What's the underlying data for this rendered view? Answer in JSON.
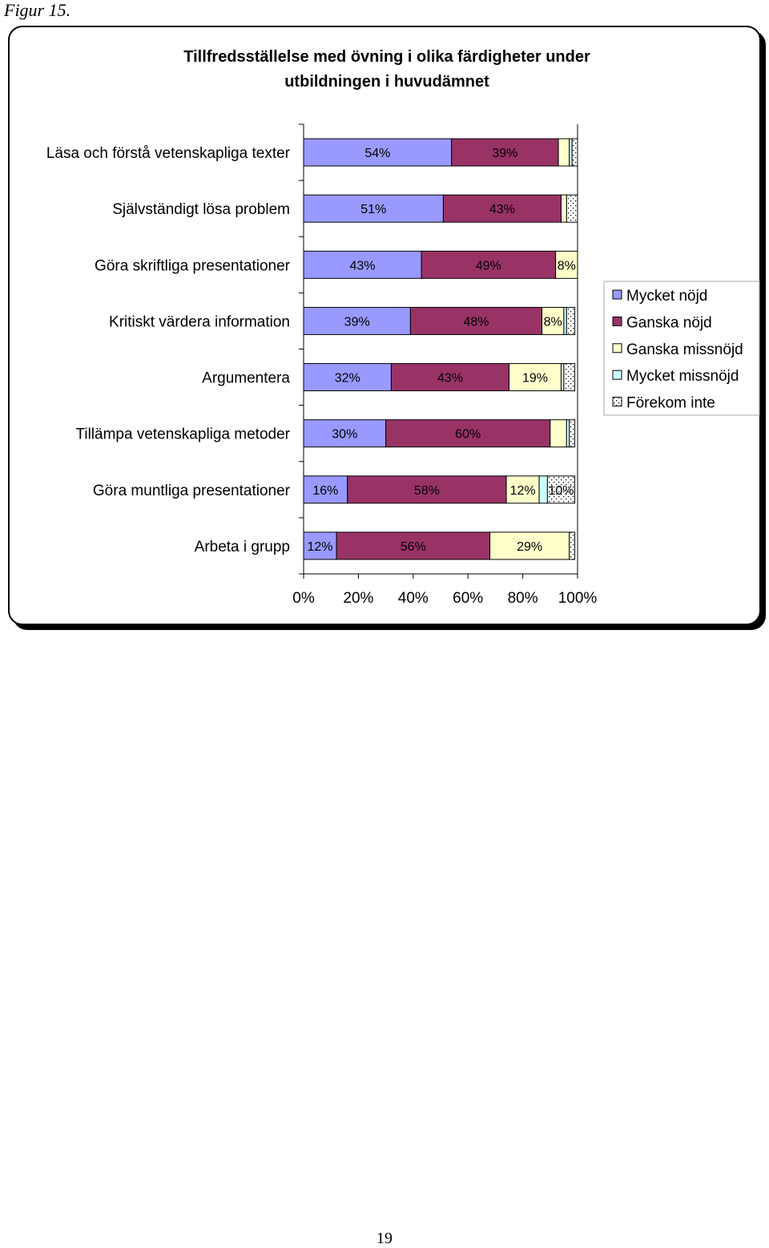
{
  "figure_caption": "Figur 15.",
  "page_number": "19",
  "chart_data": {
    "type": "bar",
    "orientation": "horizontal",
    "stacked": "percent",
    "title": "Tillfredsställelse med övning i olika färdigheter under utbildningen i huvudämnet",
    "title_lines": [
      "Tillfredsställelse med övning i olika färdigheter under",
      "utbildningen i huvudämnet"
    ],
    "categories": [
      "Läsa och förstå vetenskapliga texter",
      "Självständigt lösa problem",
      "Göra skriftliga presentationer",
      "Kritiskt värdera information",
      "Argumentera",
      "Tillämpa vetenskapliga metoder",
      "Göra muntliga presentationer",
      "Arbeta i grupp"
    ],
    "series": [
      {
        "name": "Mycket nöjd",
        "color": "#9999ff",
        "pattern": "solid",
        "values": [
          54,
          51,
          43,
          39,
          32,
          30,
          16,
          12
        ]
      },
      {
        "name": "Ganska nöjd",
        "color": "#993366",
        "pattern": "solid",
        "values": [
          39,
          43,
          49,
          48,
          43,
          60,
          58,
          56
        ]
      },
      {
        "name": "Ganska missnöjd",
        "color": "#ffffcc",
        "pattern": "solid",
        "values": [
          4,
          2,
          8,
          8,
          19,
          6,
          12,
          29
        ]
      },
      {
        "name": "Mycket missnöjd",
        "color": "#ccffff",
        "pattern": "solid",
        "values": [
          1,
          0,
          0,
          1,
          1,
          1,
          3,
          0
        ]
      },
      {
        "name": "Förekom inte",
        "color": "#ffffff",
        "pattern": "dotted",
        "values": [
          2,
          4,
          0,
          3,
          4,
          2,
          10,
          2
        ]
      }
    ],
    "data_labels": [
      [
        "54%",
        "39%",
        "",
        "",
        ""
      ],
      [
        "51%",
        "43%",
        "",
        "",
        ""
      ],
      [
        "43%",
        "49%",
        "8%",
        "",
        ""
      ],
      [
        "39%",
        "48%",
        "8%",
        "",
        ""
      ],
      [
        "32%",
        "43%",
        "19%",
        "",
        ""
      ],
      [
        "30%",
        "60%",
        "",
        "",
        ""
      ],
      [
        "16%",
        "58%",
        "12%",
        "",
        "10%"
      ],
      [
        "12%",
        "56%",
        "29%",
        "",
        ""
      ]
    ],
    "x_ticks": [
      "0%",
      "20%",
      "40%",
      "60%",
      "80%",
      "100%"
    ],
    "xlim": [
      0,
      100
    ],
    "xlabel": "",
    "ylabel": "",
    "grid": false,
    "legend_position": "right"
  }
}
